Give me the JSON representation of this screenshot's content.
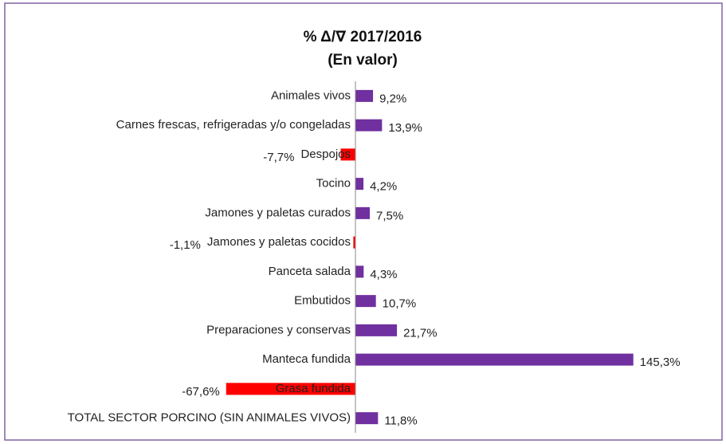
{
  "chart_data": {
    "type": "hbar",
    "title": "% Δ/∇ 2017/2016",
    "subtitle": "(En valor)",
    "categories": [
      "Animales vivos",
      "Carnes frescas, refrigeradas y/o congeladas",
      "Despojos",
      "Tocino",
      "Jamones y paletas curados",
      "Jamones y paletas cocidos",
      "Panceta salada",
      "Embutidos",
      "Preparaciones y conservas",
      "Manteca fundida",
      "Grasa fundida",
      "TOTAL SECTOR PORCINO (SIN ANIMALES VIVOS)"
    ],
    "values": [
      9.2,
      13.9,
      -7.7,
      4.2,
      7.5,
      -1.1,
      4.3,
      10.7,
      21.7,
      145.3,
      -67.6,
      11.8
    ],
    "value_labels": [
      "9,2%",
      "13,9%",
      "-7,7%",
      "4,2%",
      "7,5%",
      "-1,1%",
      "4,3%",
      "10,7%",
      "21,7%",
      "145,3%",
      "-67,6%",
      "11,8%"
    ],
    "color": "#7030a0",
    "negative_color": "#ff0000",
    "xlim": [
      -80,
      160
    ]
  }
}
